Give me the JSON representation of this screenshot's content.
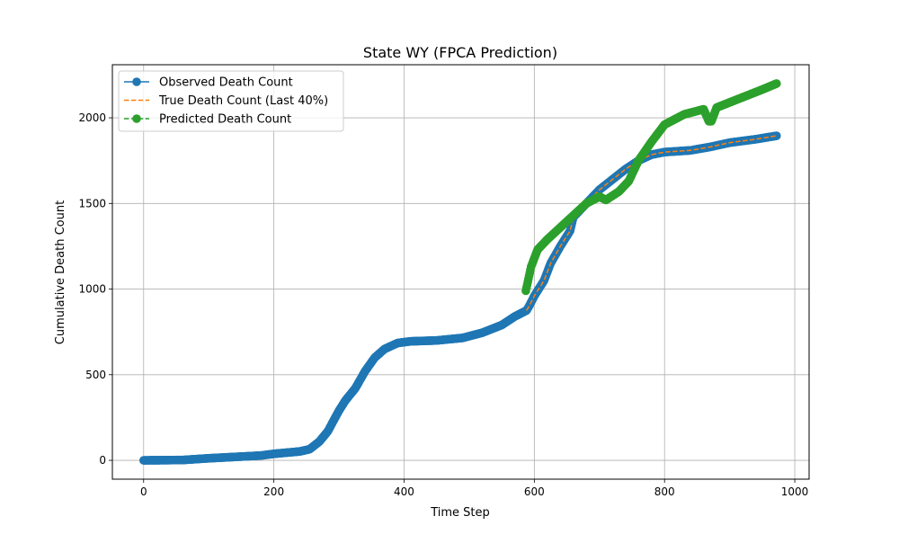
{
  "chart_data": {
    "type": "line",
    "title": "State WY (FPCA Prediction)",
    "xlabel": "Time Step",
    "ylabel": "Cumulative Death Count",
    "xlim": [
      -48,
      1022
    ],
    "ylim": [
      -110,
      2310
    ],
    "xticks": [
      0,
      200,
      400,
      600,
      800,
      1000
    ],
    "yticks": [
      0,
      500,
      1000,
      1500,
      2000
    ],
    "grid": true,
    "legend_position": "top-left",
    "series": [
      {
        "name": "Observed Death Count",
        "color": "#1f77b4",
        "style": "solid-marker",
        "knots": [
          [
            0,
            0
          ],
          [
            60,
            2
          ],
          [
            100,
            12
          ],
          [
            140,
            20
          ],
          [
            180,
            28
          ],
          [
            200,
            38
          ],
          [
            240,
            52
          ],
          [
            255,
            65
          ],
          [
            270,
            110
          ],
          [
            283,
            170
          ],
          [
            290,
            220
          ],
          [
            300,
            290
          ],
          [
            310,
            350
          ],
          [
            325,
            420
          ],
          [
            340,
            520
          ],
          [
            355,
            600
          ],
          [
            370,
            650
          ],
          [
            390,
            685
          ],
          [
            410,
            695
          ],
          [
            450,
            700
          ],
          [
            490,
            715
          ],
          [
            520,
            745
          ],
          [
            550,
            790
          ],
          [
            570,
            840
          ],
          [
            588,
            875
          ],
          [
            592,
            900
          ],
          [
            600,
            960
          ],
          [
            615,
            1050
          ],
          [
            625,
            1150
          ],
          [
            640,
            1250
          ],
          [
            655,
            1340
          ],
          [
            660,
            1420
          ],
          [
            680,
            1500
          ],
          [
            700,
            1580
          ],
          [
            720,
            1640
          ],
          [
            740,
            1700
          ],
          [
            760,
            1750
          ],
          [
            780,
            1785
          ],
          [
            800,
            1800
          ],
          [
            840,
            1810
          ],
          [
            870,
            1830
          ],
          [
            900,
            1855
          ],
          [
            940,
            1875
          ],
          [
            972,
            1895
          ]
        ]
      },
      {
        "name": "True Death Count (Last 40%)",
        "color": "#ff7f0e",
        "style": "dashed",
        "knots": [
          [
            588,
            875
          ],
          [
            592,
            900
          ],
          [
            600,
            960
          ],
          [
            615,
            1050
          ],
          [
            625,
            1150
          ],
          [
            640,
            1250
          ],
          [
            655,
            1340
          ],
          [
            660,
            1420
          ],
          [
            680,
            1500
          ],
          [
            700,
            1580
          ],
          [
            720,
            1640
          ],
          [
            740,
            1700
          ],
          [
            760,
            1750
          ],
          [
            780,
            1785
          ],
          [
            800,
            1800
          ],
          [
            840,
            1810
          ],
          [
            870,
            1830
          ],
          [
            900,
            1855
          ],
          [
            940,
            1875
          ],
          [
            972,
            1895
          ]
        ]
      },
      {
        "name": "Predicted Death Count",
        "color": "#2ca02c",
        "style": "dashed-marker",
        "knots": [
          [
            587,
            990
          ],
          [
            595,
            1130
          ],
          [
            605,
            1230
          ],
          [
            620,
            1290
          ],
          [
            640,
            1360
          ],
          [
            660,
            1430
          ],
          [
            680,
            1500
          ],
          [
            700,
            1540
          ],
          [
            710,
            1520
          ],
          [
            730,
            1570
          ],
          [
            745,
            1630
          ],
          [
            760,
            1750
          ],
          [
            780,
            1860
          ],
          [
            800,
            1960
          ],
          [
            830,
            2020
          ],
          [
            860,
            2050
          ],
          [
            868,
            1980
          ],
          [
            872,
            1980
          ],
          [
            880,
            2060
          ],
          [
            920,
            2120
          ],
          [
            950,
            2165
          ],
          [
            972,
            2200
          ]
        ]
      }
    ]
  }
}
